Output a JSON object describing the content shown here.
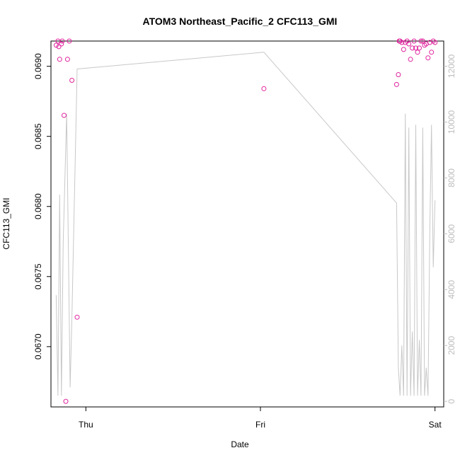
{
  "chart_data": {
    "type": "scatter",
    "title": "ATOM3 Northeast_Pacific_2 CFC113_GMI",
    "xlabel": "Date",
    "ylabel": "CFC113_GMI",
    "xlim": [
      -0.2,
      2.05
    ],
    "ylim": [
      0.06657,
      0.06918
    ],
    "y2lim": [
      -200,
      12900
    ],
    "x_ticks": [
      {
        "value": 0,
        "label": "Thu"
      },
      {
        "value": 1,
        "label": "Fri"
      },
      {
        "value": 2,
        "label": "Sat"
      }
    ],
    "y_ticks": [
      {
        "value": 0.067,
        "label": "0.0670"
      },
      {
        "value": 0.0675,
        "label": "0.0675"
      },
      {
        "value": 0.068,
        "label": "0.0680"
      },
      {
        "value": 0.0685,
        "label": "0.0685"
      },
      {
        "value": 0.069,
        "label": "0.0690"
      }
    ],
    "y2_ticks": [
      {
        "value": 0,
        "label": "0"
      },
      {
        "value": 2000,
        "label": "2000"
      },
      {
        "value": 4000,
        "label": "4000"
      },
      {
        "value": 6000,
        "label": "6000"
      },
      {
        "value": 8000,
        "label": "8000"
      },
      {
        "value": 10000,
        "label": "10000"
      },
      {
        "value": 12000,
        "label": "12000"
      }
    ],
    "grid": false,
    "colors": {
      "points": "#e0259e",
      "altitude_line": "#c8c8c8",
      "right_axis": "#bdbdbd"
    },
    "series": [
      {
        "kind": "points",
        "axis": "left",
        "x": [
          -0.17,
          -0.16,
          -0.155,
          -0.15,
          -0.14,
          -0.135,
          -0.125,
          -0.115,
          -0.105,
          -0.095,
          -0.08,
          -0.05,
          1.02,
          1.78,
          1.79,
          1.795,
          1.8,
          1.81,
          1.82,
          1.83,
          1.84,
          1.85,
          1.86,
          1.87,
          1.88,
          1.89,
          1.9,
          1.91,
          1.92,
          1.93,
          1.94,
          1.95,
          1.96,
          1.97,
          1.98,
          1.99,
          2.0
        ],
        "y": [
          0.06915,
          0.06918,
          0.06914,
          0.06905,
          0.06916,
          0.06918,
          0.06865,
          0.06661,
          0.06905,
          0.06918,
          0.0689,
          0.06721,
          0.06884,
          0.06887,
          0.06894,
          0.06918,
          0.06918,
          0.06917,
          0.06912,
          0.06917,
          0.06918,
          0.06916,
          0.06905,
          0.06913,
          0.06918,
          0.06913,
          0.0691,
          0.06913,
          0.06918,
          0.06918,
          0.06915,
          0.06916,
          0.06906,
          0.06917,
          0.0691,
          0.06918,
          0.06917
        ]
      },
      {
        "kind": "line",
        "axis": "right",
        "x": [
          -0.17,
          -0.16,
          -0.15,
          -0.14,
          -0.13,
          -0.11,
          -0.09,
          -0.08,
          -0.05,
          1.02,
          1.78,
          1.79,
          1.8,
          1.81,
          1.82,
          1.83,
          1.84,
          1.85,
          1.86,
          1.87,
          1.88,
          1.89,
          1.9,
          1.91,
          1.92,
          1.93,
          1.94,
          1.95,
          1.96,
          1.97,
          1.98,
          1.99,
          2.0
        ],
        "y": [
          3800,
          200,
          7400,
          200,
          5700,
          10300,
          500,
          3000,
          11900,
          12500,
          7100,
          1200,
          200,
          2000,
          200,
          10300,
          200,
          9800,
          200,
          2500,
          200,
          9900,
          200,
          2200,
          200,
          9800,
          200,
          1200,
          200,
          6000,
          9900,
          4800,
          7200
        ]
      }
    ]
  }
}
